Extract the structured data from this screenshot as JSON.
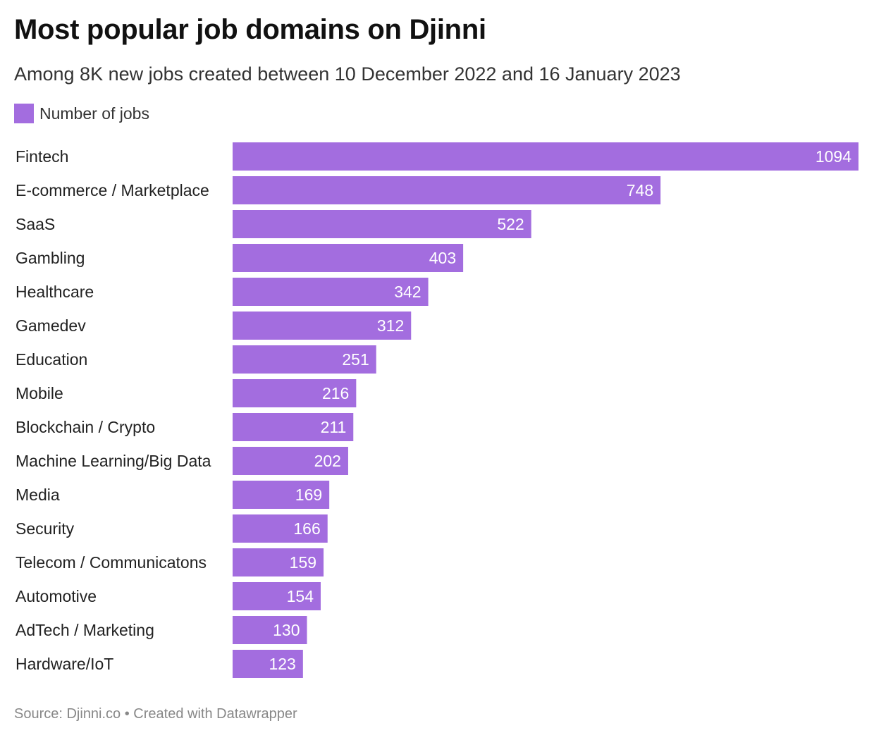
{
  "header": {
    "title": "Most popular job domains on Djinni",
    "subtitle": "Among 8K new jobs created between 10 December 2022 and 16 January 2023"
  },
  "legend": {
    "label": "Number of jobs"
  },
  "colors": {
    "bar": "#a36ddf",
    "bar_label": "#ffffff",
    "category_label": "#222222",
    "footer": "#888888"
  },
  "chart_data": {
    "type": "bar",
    "orientation": "horizontal",
    "title": "Most popular job domains on Djinni",
    "subtitle": "Among 8K new jobs created between 10 December 2022 and 16 January 2023",
    "categories": [
      "Fintech",
      "E-commerce / Marketplace",
      "SaaS",
      "Gambling",
      "Healthcare",
      "Gamedev",
      "Education",
      "Mobile",
      "Blockchain / Crypto",
      "Machine Learning/Big Data",
      "Media",
      "Security",
      "Telecom / Communicatons",
      "Automotive",
      "AdTech / Marketing",
      "Hardware/IoT"
    ],
    "series": [
      {
        "name": "Number of jobs",
        "values": [
          1094,
          748,
          522,
          403,
          342,
          312,
          251,
          216,
          211,
          202,
          169,
          166,
          159,
          154,
          130,
          123
        ]
      }
    ],
    "xlim": [
      0,
      1094
    ],
    "grid": false,
    "legend_position": "top-left",
    "data_labels": "inside-end"
  },
  "footer": {
    "source": "Source: Djinni.co • Created with Datawrapper"
  }
}
